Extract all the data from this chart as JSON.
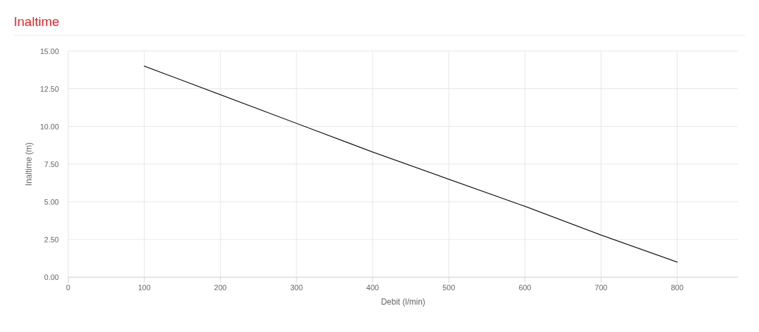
{
  "chart_data": {
    "type": "line",
    "title": "Inaltime",
    "xlabel": "Debit (l/min)",
    "ylabel": "Inaltime (m)",
    "x": [
      100,
      200,
      300,
      400,
      500,
      600,
      700,
      800
    ],
    "series": [
      {
        "color": "#1a1a1a",
        "values": [
          14.0,
          12.1,
          10.2,
          8.3,
          6.5,
          4.7,
          2.8,
          1.0
        ]
      }
    ],
    "xlim": [
      0,
      880
    ],
    "ylim": [
      0,
      15
    ],
    "xticks": [
      0,
      100,
      200,
      300,
      400,
      500,
      600,
      700,
      800
    ],
    "yticks": [
      {
        "value": 0,
        "label": "0.00"
      },
      {
        "value": 2.5,
        "label": "2.50"
      },
      {
        "value": 5,
        "label": "5.00"
      },
      {
        "value": 7.5,
        "label": "7.50"
      },
      {
        "value": 10,
        "label": "10.00"
      },
      {
        "value": 12.5,
        "label": "12.50"
      },
      {
        "value": 15,
        "label": "15.00"
      }
    ],
    "grid": true,
    "marker": "none",
    "line_style": "solid"
  }
}
